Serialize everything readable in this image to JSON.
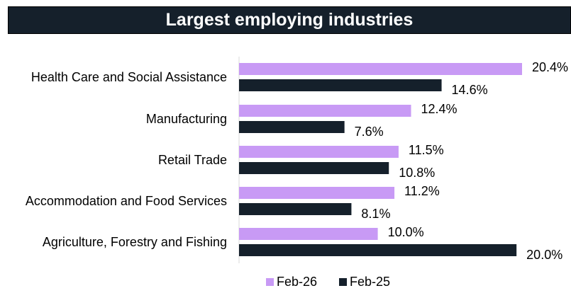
{
  "chart_data": {
    "type": "bar",
    "orientation": "horizontal",
    "title": "Largest employing industries",
    "categories": [
      "Health Care and Social Assistance",
      "Manufacturing",
      "Retail Trade",
      "Accommodation and Food Services",
      "Agriculture, Forestry and Fishing"
    ],
    "series": [
      {
        "name": "Feb-26",
        "color": "#c89af5",
        "values": [
          20.4,
          12.4,
          11.5,
          11.2,
          10.0
        ],
        "labels": [
          "20.4%",
          "12.4%",
          "11.5%",
          "11.2%",
          "10.0%"
        ]
      },
      {
        "name": "Feb-25",
        "color": "#15202b",
        "values": [
          14.6,
          7.6,
          10.8,
          8.1,
          20.0
        ],
        "labels": [
          "14.6%",
          "7.6%",
          "10.8%",
          "8.1%",
          "20.0%"
        ]
      }
    ],
    "unit": "%",
    "grid": false,
    "legend_position": "bottom"
  }
}
